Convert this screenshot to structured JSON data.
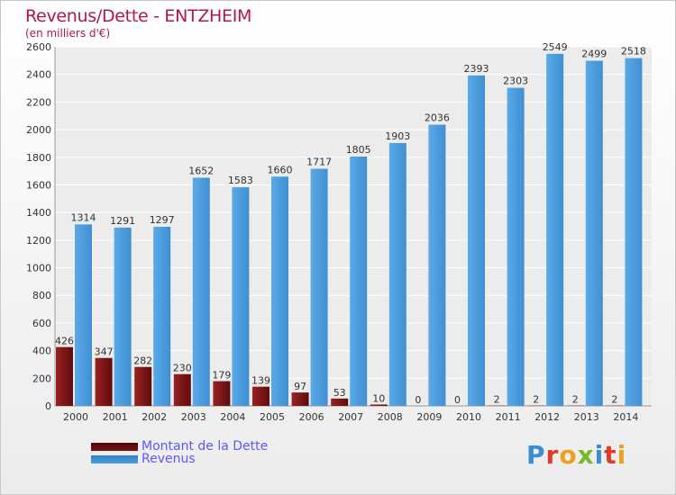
{
  "title": "Revenus/Dette - ENTZHEIM",
  "subtitle": "(en milliers d'€)",
  "logo": {
    "text": "Proxiti",
    "letter_colors": [
      "#3a8ed6",
      "#e03a2a",
      "#f0a020",
      "#7ab82a",
      "#3a8ed6",
      "#e03a2a",
      "#f0a020"
    ]
  },
  "colors": {
    "dette": "#7a1414",
    "revenus": "#4f9fdf",
    "title": "#b0184a",
    "legend_text": "#5b58ff"
  },
  "chart_data": {
    "type": "bar",
    "categories": [
      "2000",
      "2001",
      "2002",
      "2003",
      "2004",
      "2005",
      "2006",
      "2007",
      "2008",
      "2009",
      "2010",
      "2011",
      "2012",
      "2013",
      "2014"
    ],
    "series": [
      {
        "name": "Montant de la Dette",
        "values": [
          426,
          347,
          282,
          230,
          179,
          139,
          97,
          53,
          10,
          0,
          0,
          2,
          2,
          2,
          2
        ]
      },
      {
        "name": "Revenus",
        "values": [
          1314,
          1291,
          1297,
          1652,
          1583,
          1660,
          1717,
          1805,
          1903,
          2036,
          2393,
          2303,
          2549,
          2499,
          2518
        ]
      }
    ],
    "data_labels": {
      "dette": [
        "426",
        "347",
        "282",
        "230",
        "179",
        "139",
        "97",
        "53",
        "10",
        "0",
        "0",
        "2",
        "2",
        "2",
        "2"
      ],
      "revenus": [
        "1314",
        "1291",
        "1297",
        "1652",
        "1583",
        "1660",
        "1717",
        "1805",
        "1903",
        "2036",
        "2393",
        "2303",
        "2549",
        "2499",
        "2518"
      ]
    },
    "y_ticks": [
      "0",
      "200",
      "400",
      "600",
      "800",
      "1000",
      "1200",
      "1400",
      "1600",
      "1800",
      "2000",
      "2200",
      "2400",
      "2600"
    ],
    "ylim": [
      0,
      2600
    ],
    "grid": true,
    "legend_position": "bottom-left"
  }
}
